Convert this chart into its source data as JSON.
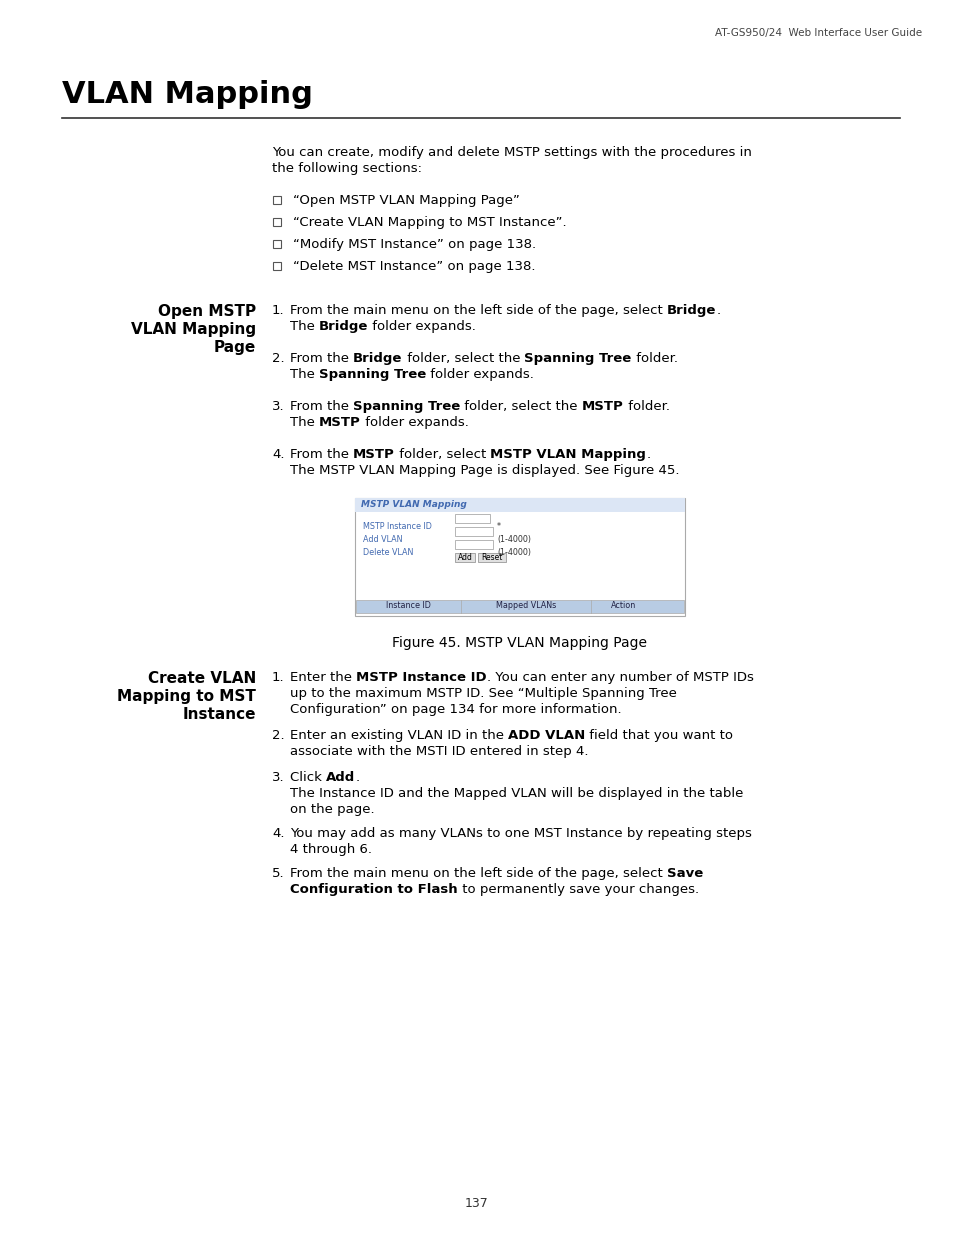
{
  "header_text": "AT-GS950/24  Web Interface User Guide",
  "title": "VLAN Mapping",
  "page_number": "137",
  "bg_color": "#ffffff",
  "title_color": "#000000",
  "body_text_color": "#000000",
  "intro_text1": "You can create, modify and delete MSTP settings with the procedures in",
  "intro_text2": "the following sections:",
  "bullet_items": [
    "“Open MSTP VLAN Mapping Page”",
    "“Create VLAN Mapping to MST Instance”.",
    "“Modify MST Instance” on page 138.",
    "“Delete MST Instance” on page 138."
  ],
  "section1_title_lines": [
    "Open MSTP",
    "VLAN Mapping",
    "Page"
  ],
  "section2_title_lines": [
    "Create VLAN",
    "Mapping to MST",
    "Instance"
  ],
  "figure_caption": "Figure 45. MSTP VLAN Mapping Page",
  "figure_title": "MSTP VLAN Mapping",
  "figure_fields": [
    "MSTP Instance ID",
    "Add VLAN",
    "Delete VLAN"
  ],
  "figure_field_hints": [
    "*",
    "(1-4000)",
    "(1-4000)"
  ],
  "figure_table_cols": [
    "Instance ID",
    "Mapped VLANs",
    "Action"
  ],
  "blue_color": "#4169b0",
  "light_blue_header": "#dce6f5",
  "table_header_bg": "#b8cce4",
  "figure_border": "#aaaacc"
}
